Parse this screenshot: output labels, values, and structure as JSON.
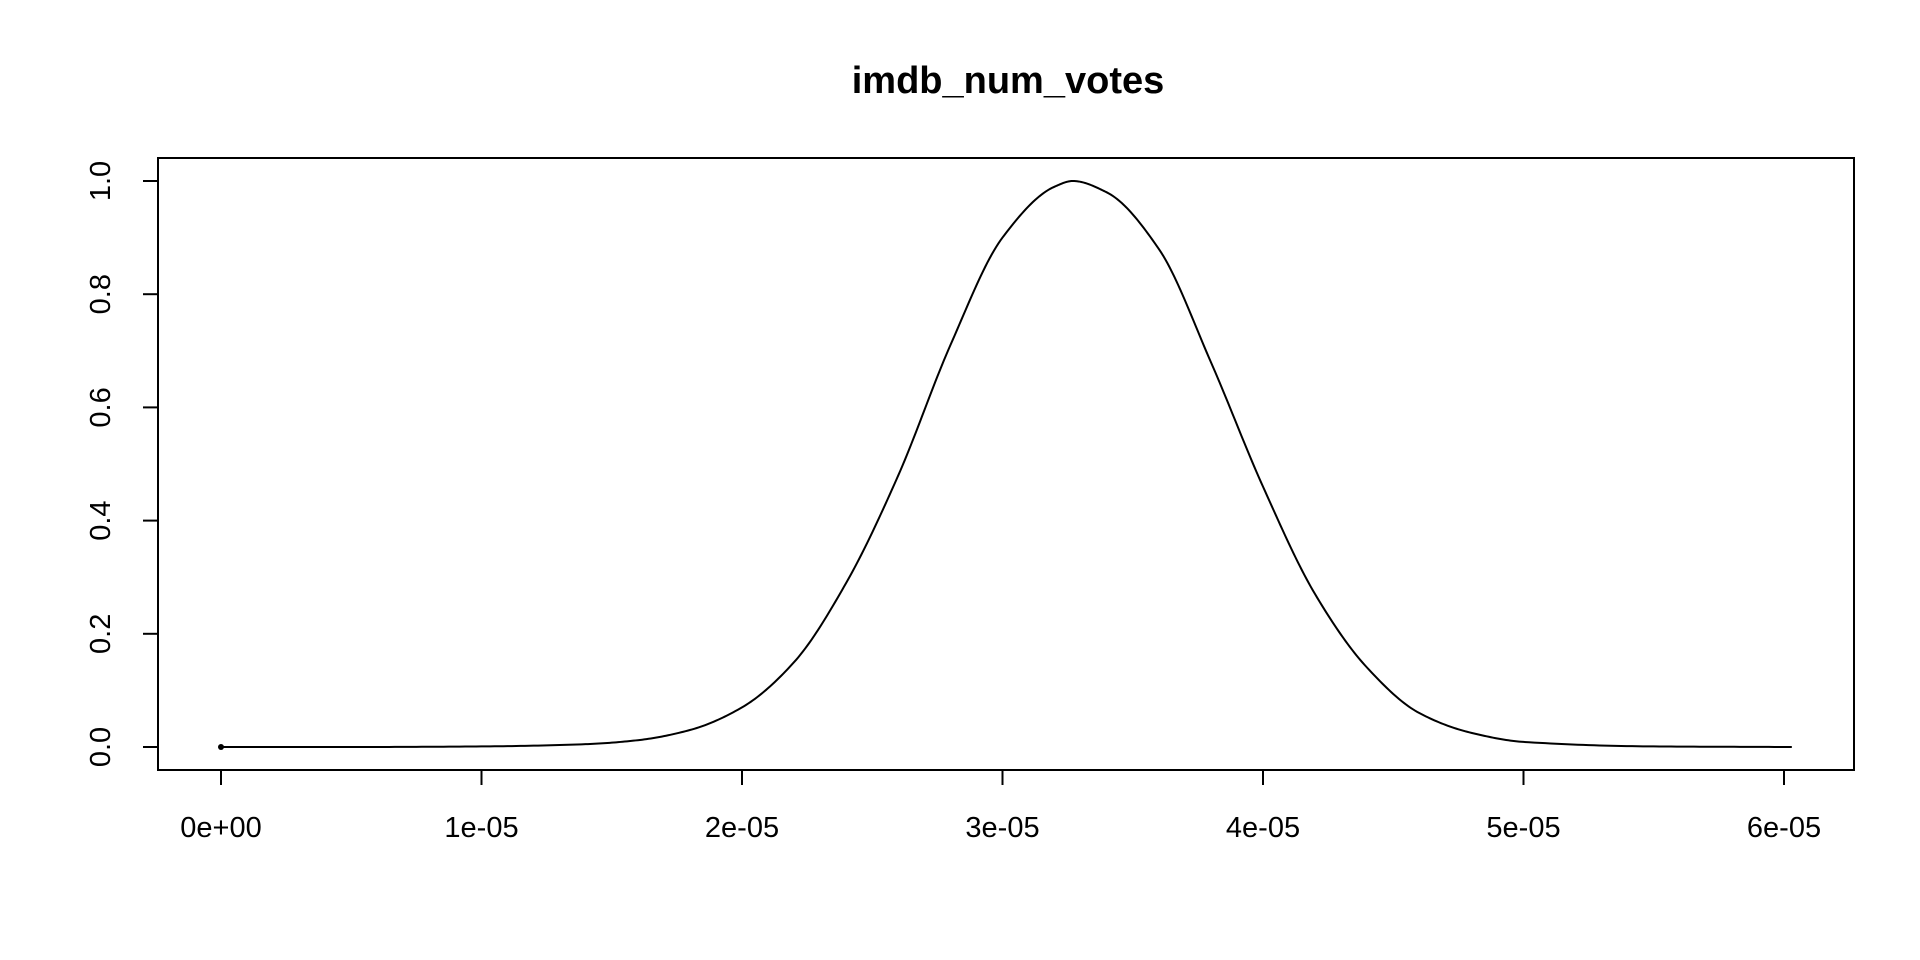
{
  "chart_data": {
    "type": "line",
    "title": "imdb_num_votes",
    "xlabel": "",
    "ylabel": "",
    "xlim": [
      0,
      6.03e-05
    ],
    "ylim": [
      0,
      1
    ],
    "x_ticks": [
      0,
      1e-05,
      2e-05,
      3e-05,
      4e-05,
      5e-05,
      6e-05
    ],
    "x_tick_labels": [
      "0e+00",
      "1e-05",
      "2e-05",
      "3e-05",
      "4e-05",
      "5e-05",
      "6e-05"
    ],
    "y_ticks": [
      0,
      0.2,
      0.4,
      0.6,
      0.8,
      1
    ],
    "y_tick_labels": [
      "0.0",
      "0.2",
      "0.4",
      "0.6",
      "0.8",
      "1.0"
    ],
    "grid": false,
    "legend": "none",
    "series": [
      {
        "x": [
          0,
          5e-06,
          1e-05,
          1.4e-05,
          1.6e-05,
          1.8e-05,
          2e-05,
          2.2e-05,
          2.4e-05,
          2.6e-05,
          2.8e-05,
          3e-05,
          3.2e-05,
          3.27e-05,
          3.4e-05,
          3.6e-05,
          3.8e-05,
          4e-05,
          4.2e-05,
          4.4e-05,
          4.6e-05,
          4.8e-05,
          5e-05,
          5.5e-05,
          6.03e-05
        ],
        "y": [
          0,
          0,
          0.001,
          0.005,
          0.012,
          0.03,
          0.07,
          0.15,
          0.29,
          0.48,
          0.71,
          0.9,
          0.99,
          1.0,
          0.98,
          0.88,
          0.68,
          0.46,
          0.27,
          0.14,
          0.06,
          0.025,
          0.009,
          0.001,
          0
        ]
      }
    ],
    "start_point_marker": true
  }
}
